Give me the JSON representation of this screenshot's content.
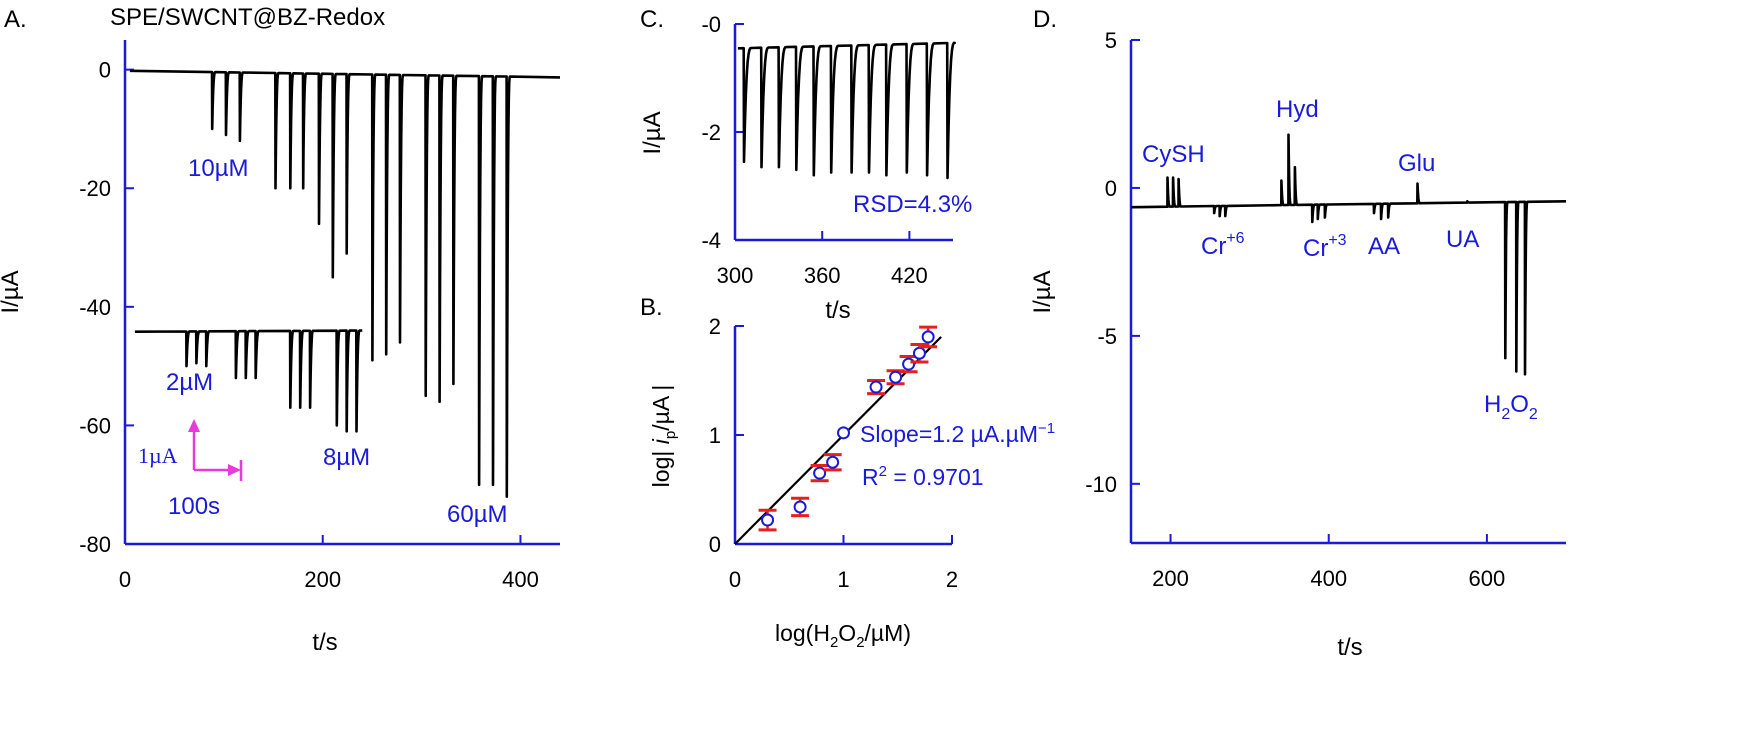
{
  "panels": {
    "a": {
      "letter": "A.",
      "title": "SPE/SWCNT@BZ-Redox"
    },
    "b": {
      "letter": "B."
    },
    "c": {
      "letter": "C."
    },
    "d": {
      "letter": "D."
    }
  },
  "colors": {
    "axis": "#1a1adb",
    "trace": "#000000",
    "label_blue": "#1a1adb",
    "scalebar": "#e83ad8",
    "errorbar": "#e8201c"
  },
  "chart_data": [
    {
      "id": "A",
      "type": "line",
      "xlabel": "t/s",
      "ylabel": "I/µA",
      "xlim": [
        0,
        440
      ],
      "ylim": [
        -80,
        5
      ],
      "xticks": [
        0,
        200,
        400
      ],
      "yticks": [
        0,
        -20,
        -40,
        -60,
        -80
      ],
      "xtick_labels": [
        "0",
        "200",
        "400"
      ],
      "ytick_labels": [
        "0",
        "-20",
        "-40",
        "-60",
        "-80"
      ],
      "grid": false,
      "annotations": [
        "10µM",
        "2µM",
        "8µM",
        "60µM"
      ],
      "scale_bar": {
        "current": "1µA",
        "time": "100s"
      },
      "series": [
        {
          "trace": "upper",
          "baseline": {
            "t_start": 5,
            "t_end": 440,
            "i_start": -0.2,
            "i_end": -1.3
          },
          "spikes": [
            {
              "t": 88,
              "depth": -10
            },
            {
              "t": 102,
              "depth": -11
            },
            {
              "t": 116,
              "depth": -12
            },
            {
              "t": 152,
              "depth": -20
            },
            {
              "t": 167,
              "depth": -20
            },
            {
              "t": 180,
              "depth": -20
            },
            {
              "t": 196,
              "depth": -26
            },
            {
              "t": 210,
              "depth": -35
            },
            {
              "t": 224,
              "depth": -31
            },
            {
              "t": 250,
              "depth": -49
            },
            {
              "t": 264,
              "depth": -48
            },
            {
              "t": 278,
              "depth": -46
            },
            {
              "t": 304,
              "depth": -55
            },
            {
              "t": 318,
              "depth": -56
            },
            {
              "t": 332,
              "depth": -53
            },
            {
              "t": 358,
              "depth": -70
            },
            {
              "t": 372,
              "depth": -70
            },
            {
              "t": 386,
              "depth": -72
            }
          ]
        },
        {
          "trace": "lower",
          "baseline": {
            "t_start": 10,
            "t_end": 240,
            "i_start": -44.2,
            "i_end": -44.0
          },
          "spikes": [
            {
              "t": 62,
              "depth": -50
            },
            {
              "t": 72,
              "depth": -49.5
            },
            {
              "t": 82,
              "depth": -50
            },
            {
              "t": 112,
              "depth": -52
            },
            {
              "t": 122,
              "depth": -52
            },
            {
              "t": 132,
              "depth": -52
            },
            {
              "t": 167,
              "depth": -57
            },
            {
              "t": 177,
              "depth": -57
            },
            {
              "t": 187,
              "depth": -57
            },
            {
              "t": 214,
              "depth": -60
            },
            {
              "t": 224,
              "depth": -61
            },
            {
              "t": 234,
              "depth": -61
            }
          ]
        }
      ]
    },
    {
      "id": "B",
      "type": "scatter",
      "xlabel": "log(H2O2/µM)",
      "ylabel": "log| ip/µA |",
      "xlim": [
        0,
        2
      ],
      "ylim": [
        0,
        2
      ],
      "xticks": [
        0,
        1,
        2
      ],
      "yticks": [
        0,
        1,
        2
      ],
      "xtick_labels": [
        "0",
        "1",
        "2"
      ],
      "ytick_labels": [
        "0",
        "1",
        "2"
      ],
      "grid": false,
      "points": [
        {
          "x": 0.3,
          "y": 0.22,
          "err": 0.09
        },
        {
          "x": 0.6,
          "y": 0.34,
          "err": 0.08
        },
        {
          "x": 0.78,
          "y": 0.65,
          "err": 0.07
        },
        {
          "x": 0.9,
          "y": 0.75,
          "err": 0.07
        },
        {
          "x": 1.0,
          "y": 1.02,
          "err": 0.0
        },
        {
          "x": 1.3,
          "y": 1.44,
          "err": 0.06
        },
        {
          "x": 1.48,
          "y": 1.53,
          "err": 0.06
        },
        {
          "x": 1.6,
          "y": 1.65,
          "err": 0.07
        },
        {
          "x": 1.7,
          "y": 1.75,
          "err": 0.08
        },
        {
          "x": 1.78,
          "y": 1.9,
          "err": 0.09
        }
      ],
      "fit_line": {
        "x": [
          0,
          1.9
        ],
        "y": [
          0,
          1.9
        ]
      },
      "slope_label": "Slope=1.2 µA.µM",
      "slope_superscript": "−1",
      "r2_label": "= 0.9701"
    },
    {
      "id": "C",
      "type": "line",
      "xlabel": "t/s",
      "ylabel": "I/µA",
      "xlim": [
        300,
        450
      ],
      "ylim": [
        -4,
        0
      ],
      "xticks": [
        300,
        360,
        420
      ],
      "yticks": [
        0,
        -2,
        -4
      ],
      "xtick_labels": [
        "300",
        "360",
        "420"
      ],
      "ytick_labels": [
        "-0",
        "-2",
        "-4"
      ],
      "grid": false,
      "rsd_label": "RSD=4.3%",
      "baseline": {
        "t_start": 302,
        "t_end": 450,
        "i_start": -0.45,
        "i_end": -0.35
      },
      "spikes": [
        {
          "t": 306,
          "depth": -2.55
        },
        {
          "t": 318,
          "depth": -2.65
        },
        {
          "t": 330,
          "depth": -2.65
        },
        {
          "t": 342,
          "depth": -2.7
        },
        {
          "t": 354,
          "depth": -2.8
        },
        {
          "t": 366,
          "depth": -2.75
        },
        {
          "t": 380,
          "depth": -2.75
        },
        {
          "t": 392,
          "depth": -2.75
        },
        {
          "t": 404,
          "depth": -2.8
        },
        {
          "t": 418,
          "depth": -2.75
        },
        {
          "t": 432,
          "depth": -2.8
        },
        {
          "t": 446,
          "depth": -2.85
        }
      ]
    },
    {
      "id": "D",
      "type": "line",
      "xlabel": "t/s",
      "ylabel": "I/µA",
      "xlim": [
        150,
        700
      ],
      "ylim": [
        -12,
        5
      ],
      "xticks": [
        200,
        400,
        600
      ],
      "yticks": [
        5,
        0,
        -5,
        -10
      ],
      "xtick_labels": [
        "200",
        "400",
        "600"
      ],
      "ytick_labels": [
        "5",
        "0",
        "-5",
        "-10"
      ],
      "grid": false,
      "annotations": {
        "CySH": "CySH",
        "Cr6": "Cr",
        "Cr6_sup": "+6",
        "Hyd": "Hyd",
        "Cr3": "Cr",
        "Cr3_sup": "+3",
        "AA": "AA",
        "Glu": "Glu",
        "UA": "UA",
        "H2O2_main": "H",
        "H2O2_sub1": "2",
        "H2O2_mid": "O",
        "H2O2_sub2": "2"
      },
      "baseline": {
        "t_start": 150,
        "t_end": 700,
        "i_start": -0.65,
        "i_end": -0.45
      },
      "spikes": [
        {
          "t": 196,
          "depth": 0.35
        },
        {
          "t": 203,
          "depth": 0.35
        },
        {
          "t": 210,
          "depth": 0.3
        },
        {
          "t": 255,
          "depth": -0.85
        },
        {
          "t": 262,
          "depth": -0.95
        },
        {
          "t": 269,
          "depth": -0.95
        },
        {
          "t": 340,
          "depth": 0.25
        },
        {
          "t": 349,
          "depth": 1.8
        },
        {
          "t": 357,
          "depth": 0.7
        },
        {
          "t": 379,
          "depth": -1.15
        },
        {
          "t": 386,
          "depth": -1.05
        },
        {
          "t": 395,
          "depth": -1.0
        },
        {
          "t": 457,
          "depth": -0.85
        },
        {
          "t": 466,
          "depth": -1.05
        },
        {
          "t": 475,
          "depth": -1.0
        },
        {
          "t": 512,
          "depth": 0.15
        },
        {
          "t": 575,
          "depth": -0.45
        },
        {
          "t": 623,
          "depth": -5.75
        },
        {
          "t": 637,
          "depth": -6.2
        },
        {
          "t": 648,
          "depth": -6.3
        }
      ]
    }
  ]
}
